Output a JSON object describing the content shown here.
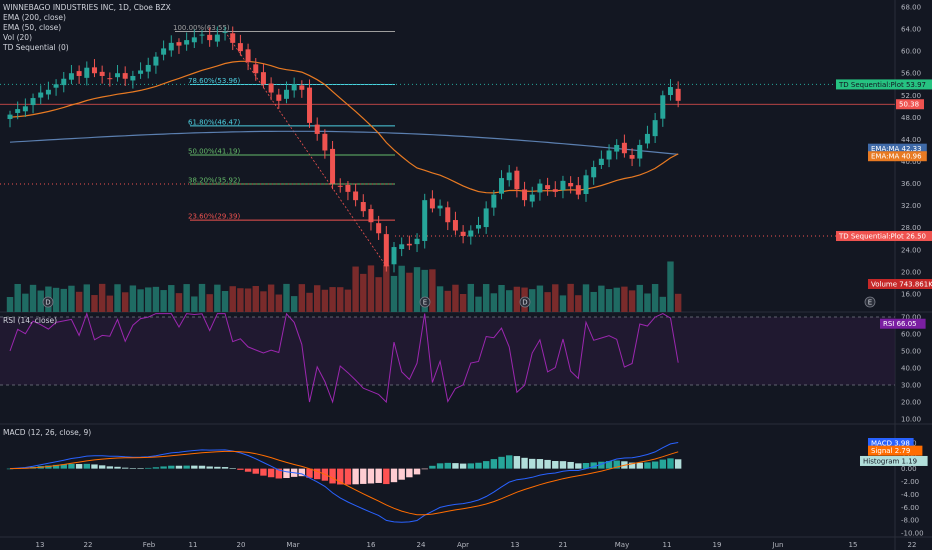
{
  "header": {
    "symbol_line": "WINNEBAGO INDUSTRIES INC, 1D, Cboe BZX",
    "studies": [
      "EMA (200, close)",
      "EMA (50, close)",
      "Vol (20)",
      "TD Sequential (0)"
    ]
  },
  "rsi_legend": "RSI (14, close)",
  "macd_legend": "MACD (12, 26, close, 9)",
  "colors": {
    "up": "#26a69a",
    "down": "#ef5350",
    "vol_up": "#1f6b63",
    "vol_down": "#7a2b2b",
    "ema200": "#5b7fb0",
    "ema50": "#e87a22",
    "rsi": "#9c27b0",
    "macd": "#2962ff",
    "signal": "#ff6d00",
    "hist_pos": "#26a69a",
    "hist_pos_light": "#b2dfdb",
    "hist_neg": "#ff5252",
    "hist_neg_light": "#ffcdd2"
  },
  "chart_data": [
    {
      "type": "candlestick",
      "title": "WINNEBAGO INDUSTRIES INC, 1D, Cboe BZX",
      "ylim": [
        14,
        68
      ],
      "y_ticks": [
        "68.00",
        "64.00",
        "60.00",
        "56.00",
        "52.00",
        "48.00",
        "44.00",
        "40.00",
        "36.00",
        "32.00",
        "28.00",
        "24.00",
        "20.00",
        "16.00"
      ],
      "x_ticks": [
        "13",
        "22",
        "Feb",
        "11",
        "20",
        "Mar",
        "16",
        "24",
        "Apr",
        "13",
        "21",
        "May",
        "11",
        "19",
        "Jun",
        "15",
        "22"
      ],
      "closes": [
        48.5,
        49.5,
        50.0,
        51.5,
        52.5,
        53.0,
        54.0,
        55.0,
        56.0,
        55.5,
        57.0,
        56.0,
        55.5,
        55.0,
        56.0,
        55.0,
        55.5,
        56.5,
        57.5,
        59.0,
        60.5,
        61.5,
        61.0,
        62.0,
        62.5,
        63.0,
        62.0,
        63.0,
        63.5,
        61.5,
        60.0,
        58.0,
        56.0,
        54.0,
        52.5,
        51.0,
        53.0,
        54.0,
        53.0,
        47.0,
        45.0,
        42.0,
        36.0,
        35.5,
        34.5,
        33.0,
        31.0,
        29.0,
        27.0,
        21.0,
        24.5,
        25.0,
        24.8,
        26.0,
        33.0,
        31.5,
        32.0,
        29.0,
        27.5,
        26.5,
        27.5,
        28.5,
        31.5,
        34.0,
        37.0,
        38.0,
        35.0,
        33.0,
        34.0,
        36.0,
        35.0,
        34.5,
        36.5,
        35.5,
        34.0,
        37.5,
        39.0,
        40.5,
        42.0,
        43.0,
        41.5,
        40.5,
        43.0,
        45.0,
        47.5,
        52.0,
        53.5,
        51.0
      ],
      "annotations": [
        "100.00%(63.55)",
        "78.60%(53.96)",
        "61.80%(46.47)",
        "50.00%(41.19)",
        "38.20%(35.92)",
        "23.60%(29.39)"
      ],
      "ema200": 42.33,
      "ema50": 40.96,
      "td_plot_upper": 53.97,
      "td_plot_lower": 26.5,
      "last_price": 50.38,
      "volume_label": "743.861K"
    },
    {
      "type": "line",
      "title": "RSI (14, close)",
      "ylim": [
        10,
        70
      ],
      "y_ticks": [
        "70.00",
        "60.00",
        "50.00",
        "40.00",
        "30.00",
        "20.00",
        "10.00"
      ],
      "last_value": 66.05
    },
    {
      "type": "line",
      "title": "MACD (12, 26, close, 9)",
      "ylim": [
        -10,
        6
      ],
      "y_ticks": [
        "4.00",
        "2.00",
        "0.00",
        "-2.00",
        "-4.00",
        "-6.00",
        "-8.00",
        "-10.00"
      ],
      "series": [
        {
          "name": "MACD",
          "last_value": "3.98"
        },
        {
          "name": "Signal",
          "last_value": "2.79"
        },
        {
          "name": "Histogram",
          "last_value": "1.19"
        }
      ]
    }
  ],
  "price_labels": {
    "td_upper": "TD Sequential:Plot 53.97",
    "last": "50.38",
    "ema": "EMA:MA 42.33",
    "ema2": "EMA:MA 40.96",
    "td_lower": "TD Sequential:Plot 26.50",
    "volume": "Volume 743.861K",
    "rsi": "RSI 66.05",
    "macd": "MACD 3.98",
    "signal": "Signal 2.79",
    "hist": "Histogram 1.19"
  }
}
